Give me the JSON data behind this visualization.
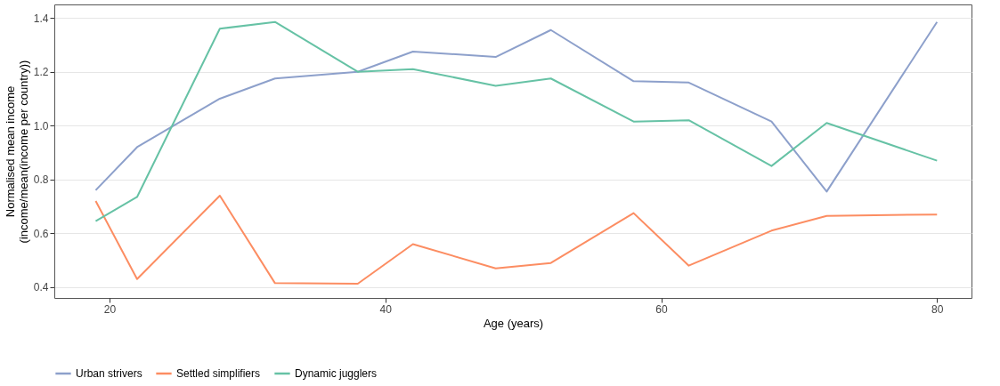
{
  "chart_data": {
    "type": "line",
    "xlabel": "Age (years)",
    "ylabel": "Normalised mean income\n(income/mean(income per country))",
    "x": [
      19,
      22,
      28,
      32,
      38,
      42,
      48,
      52,
      58,
      62,
      68,
      72,
      80
    ],
    "series": [
      {
        "name": "Urban strivers",
        "color": "#8da0cb",
        "values": [
          0.76,
          0.92,
          1.1,
          1.175,
          1.2,
          1.275,
          1.255,
          1.355,
          1.165,
          1.16,
          1.015,
          0.755,
          1.385
        ]
      },
      {
        "name": "Settled simplifiers",
        "color": "#fc8d62",
        "values": [
          0.72,
          0.43,
          0.74,
          0.415,
          0.413,
          0.56,
          0.47,
          0.49,
          0.675,
          0.48,
          0.61,
          0.665,
          0.67
        ]
      },
      {
        "name": "Dynamic jugglers",
        "color": "#66c2a5",
        "values": [
          0.645,
          0.735,
          1.36,
          1.385,
          1.2,
          1.21,
          1.148,
          1.175,
          1.015,
          1.02,
          0.85,
          1.01,
          0.87
        ]
      }
    ],
    "xlim": [
      16,
      82.5
    ],
    "xticks": [
      20,
      40,
      60,
      80
    ],
    "ylim": [
      0.36,
      1.45
    ],
    "yticks": [
      {
        "value": 0.4,
        "label": "0.4"
      },
      {
        "value": 0.6,
        "label": "0.6"
      },
      {
        "value": 0.8,
        "label": "0.8"
      },
      {
        "value": 1.0,
        "label": "1.0"
      },
      {
        "value": 1.2,
        "label": "1.2"
      },
      {
        "value": 1.4,
        "label": "1.4"
      }
    ],
    "grid": "y",
    "legend": "bottom",
    "line_style": "solid",
    "marker": "none"
  }
}
